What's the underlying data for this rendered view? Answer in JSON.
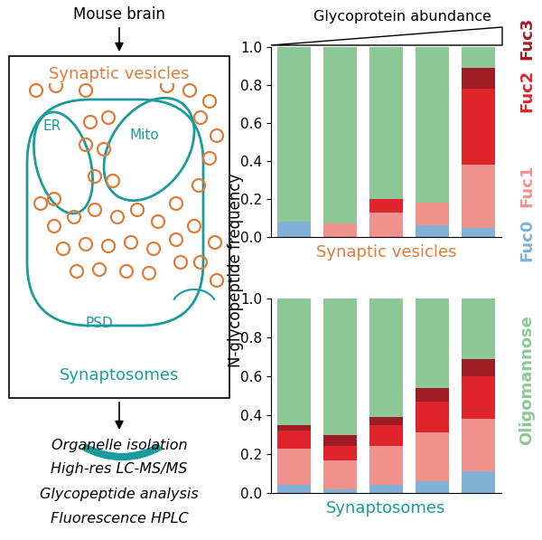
{
  "diagram": {
    "title": "Mouse brain",
    "nodes": [
      {
        "label": "Synaptic vesicles"
      },
      {
        "label": "ER"
      },
      {
        "label": "Mito"
      },
      {
        "label": "PSD"
      },
      {
        "label": "Synaptosomes"
      }
    ],
    "methods": [
      "Organelle isolation",
      "High-res LC-MS/MS",
      "Glycopeptide analysis",
      "Fluorescence HPLC"
    ]
  },
  "figure": {
    "y_label": "N-glycopeptide frequency",
    "x_annotation": "Glycoprotein abundance"
  },
  "chart_data": [
    {
      "type": "bar",
      "stacked": true,
      "x_label": "Synaptic vesicles",
      "tick_labels": "y",
      "categories": [
        null,
        null,
        null,
        null,
        null
      ],
      "ylim": [
        0,
        1
      ],
      "yticks": [
        {
          "value": 0,
          "label": "0.0"
        },
        0.2,
        0.4,
        0.6,
        0.8,
        {
          "value": 1,
          "label": "1.0"
        }
      ],
      "series": [
        {
          "name": "Fuc0",
          "color": "#7fb2d6",
          "values": [
            0.08,
            0.0,
            0.0,
            0.06,
            0.05
          ]
        },
        {
          "name": "Fuc1",
          "color": "#f0928e",
          "values": [
            0.0,
            0.07,
            0.13,
            0.12,
            0.33
          ]
        },
        {
          "name": "Fuc2",
          "color": "#e0242c",
          "values": [
            0.0,
            0.0,
            0.07,
            0.0,
            0.4
          ]
        },
        {
          "name": "Fuc3",
          "color": "#a01c24",
          "values": [
            0.0,
            0.0,
            0.0,
            0.0,
            0.11
          ]
        },
        {
          "name": "Oligomannose",
          "color": "#8cc896",
          "values": [
            0.92,
            0.93,
            0.8,
            0.82,
            0.11
          ]
        }
      ]
    },
    {
      "type": "bar",
      "stacked": true,
      "x_label": "Synaptosomes",
      "tick_labels": "y",
      "categories": [
        null,
        null,
        null,
        null,
        null
      ],
      "ylim": [
        0,
        1
      ],
      "yticks": [
        {
          "value": 0,
          "label": "0.0"
        },
        0.2,
        0.4,
        0.6,
        0.8,
        {
          "value": 1,
          "label": "1.0"
        }
      ],
      "series": [
        {
          "name": "Fuc0",
          "color": "#7fb2d6",
          "values": [
            0.04,
            0.02,
            0.04,
            0.06,
            0.11
          ]
        },
        {
          "name": "Fuc1",
          "color": "#f0928e",
          "values": [
            0.19,
            0.15,
            0.2,
            0.25,
            0.27
          ]
        },
        {
          "name": "Fuc2",
          "color": "#e0242c",
          "values": [
            0.09,
            0.07,
            0.11,
            0.16,
            0.22
          ]
        },
        {
          "name": "Fuc3",
          "color": "#a01c24",
          "values": [
            0.03,
            0.06,
            0.04,
            0.07,
            0.09
          ]
        },
        {
          "name": "Oligomannose",
          "color": "#8cc896",
          "values": [
            0.65,
            0.7,
            0.61,
            0.46,
            0.31
          ]
        }
      ]
    }
  ]
}
